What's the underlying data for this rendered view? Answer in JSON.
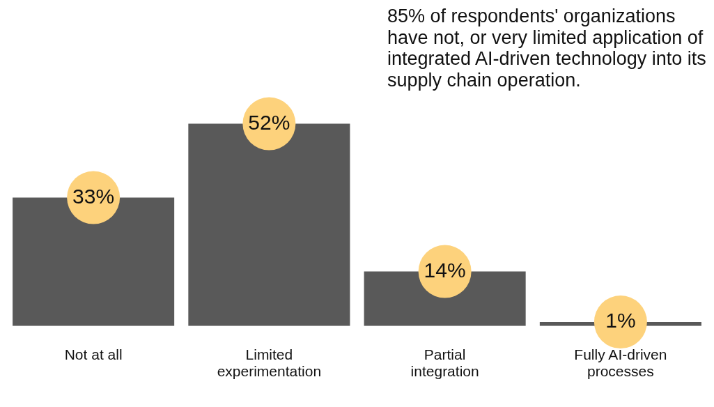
{
  "chart_data": {
    "type": "bar",
    "categories": [
      "Not at all",
      "Limited experimentation",
      "Partial integration",
      "Fully AI-driven processes"
    ],
    "values": [
      33,
      52,
      14,
      1
    ],
    "color": "#595959",
    "value_labels": [
      "33%",
      "52%",
      "14%",
      "1%"
    ],
    "annotations": [
      "85% of respondents' organizations have not, or very limited application of integrated AI-driven technology into its supply chain operation."
    ],
    "grid": false,
    "legend": false
  }
}
